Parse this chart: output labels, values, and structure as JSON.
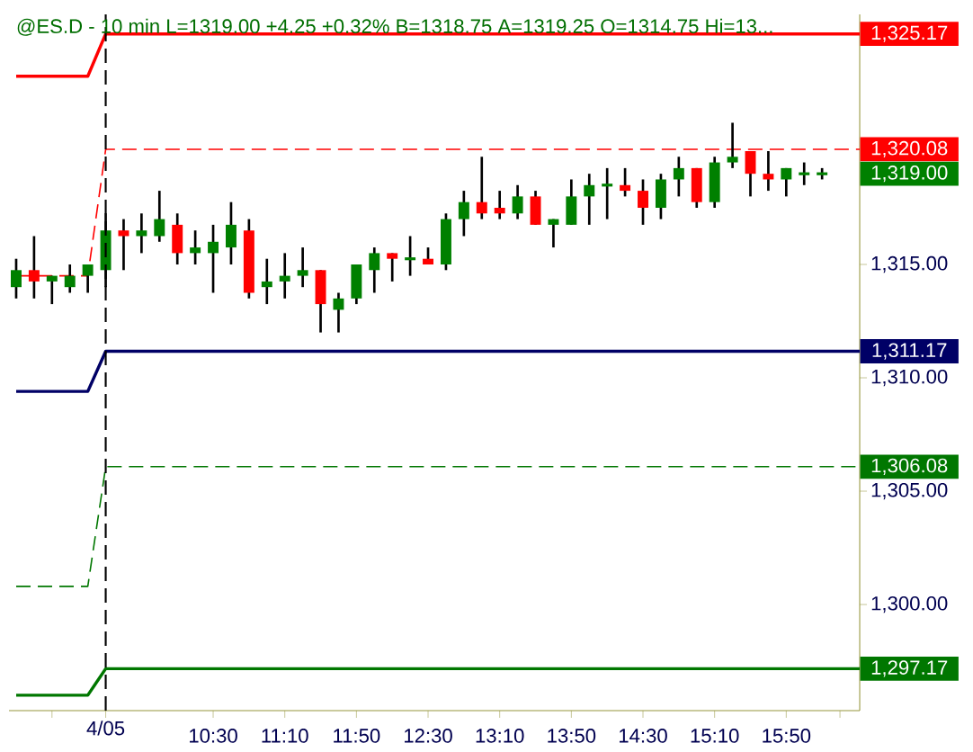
{
  "chart_data": {
    "type": "candlestick",
    "title": "@ES.D - 10 min  L=1319.00  +4.25  +0.32%  B=1318.75  A=1319.25  O=1314.75  Hi=13...",
    "xlim": [
      8.6,
      16.517
    ],
    "ylim": [
      1295.32,
      1326.03
    ],
    "xticks": [
      {
        "value": 9,
        "label": null
      },
      {
        "value": 9.5,
        "label": null
      },
      {
        "value": 10.5,
        "label": "10:30"
      },
      {
        "value": 11.1667,
        "label": "11:10"
      },
      {
        "value": 11.8333,
        "label": "11:50"
      },
      {
        "value": 12.5,
        "label": "12:30"
      },
      {
        "value": 13.1667,
        "label": "13:10"
      },
      {
        "value": 13.8333,
        "label": "13:50"
      },
      {
        "value": 14.5,
        "label": "14:30"
      },
      {
        "value": 15.1667,
        "label": "15:10"
      },
      {
        "value": 15.8333,
        "label": "15:50"
      },
      {
        "value": 16.3333,
        "label": null
      }
    ],
    "yticks": [
      {
        "value": 1300,
        "label": "1,300.00"
      },
      {
        "value": 1305,
        "label": "1,305.00"
      },
      {
        "value": 1310,
        "label": "1,310.00"
      },
      {
        "value": 1315,
        "label": "1,315.00"
      }
    ],
    "ref_lines": [
      {
        "axis": "x",
        "value": 9.5,
        "color": "#000000",
        "line_style": "dashed"
      }
    ],
    "annotations": [
      "4/05"
    ],
    "series": [
      {
        "type": "line",
        "color": "#ff0000",
        "line_style": "solid",
        "x": [
          8.6667,
          9.3333,
          9.5,
          16.517
        ],
        "values": [
          1323.3,
          1323.3,
          1325.17,
          1325.17
        ],
        "value_labels": [
          null,
          null,
          null,
          "1,325.17"
        ]
      },
      {
        "type": "line",
        "color": "#ff0000",
        "line_style": "dashed",
        "x": [
          8.6667,
          9.3333,
          9.5,
          16.517
        ],
        "values": [
          1314.5,
          1314.5,
          1320.08,
          1320.08
        ],
        "value_labels": [
          null,
          null,
          null,
          "1,320.08"
        ]
      },
      {
        "type": "line",
        "color": "#000066",
        "line_style": "solid",
        "x": [
          8.6667,
          9.3333,
          9.5,
          16.517
        ],
        "values": [
          1309.4,
          1309.4,
          1311.17,
          1311.17
        ],
        "value_labels": [
          null,
          null,
          null,
          "1,311.17"
        ]
      },
      {
        "type": "line",
        "color": "#007700",
        "line_style": "dashed",
        "x": [
          8.6667,
          9.3333,
          9.5,
          16.517
        ],
        "values": [
          1300.8,
          1300.8,
          1306.08,
          1306.08
        ],
        "value_labels": [
          null,
          null,
          null,
          "1,306.08"
        ]
      },
      {
        "type": "line",
        "color": "#007700",
        "line_style": "solid",
        "x": [
          8.6667,
          9.3333,
          9.5,
          16.517
        ],
        "values": [
          1296,
          1296,
          1297.17,
          1297.17
        ],
        "value_labels": [
          null,
          null,
          null,
          "1,297.17"
        ]
      },
      {
        "x": [
          8.6667,
          8.8333,
          9,
          9.1667,
          9.3333,
          9.5,
          9.6667,
          9.8333,
          10,
          10.1667,
          10.3333,
          10.5,
          10.6667,
          10.8333,
          11,
          11.1667,
          11.3333,
          11.5,
          11.6667,
          11.8333,
          12,
          12.1667,
          12.3333,
          12.5,
          12.6667,
          12.8333,
          13,
          13.1667,
          13.3333,
          13.5,
          13.6667,
          13.8333,
          14,
          14.1667,
          14.3333,
          14.5,
          14.6667,
          14.8333,
          15,
          15.1667,
          15.3333,
          15.5,
          15.6667,
          15.8333,
          16,
          16.1667
        ],
        "ohlc": [
          [
            1314,
            1315.25,
            1313.5,
            1314.75
          ],
          [
            1314.75,
            1316.25,
            1313.5,
            1314.25
          ],
          [
            1314.25,
            1314.5,
            1313.25,
            1314.5
          ],
          [
            1314,
            1315,
            1313.75,
            1314.5
          ],
          [
            1314.5,
            1315,
            1313.75,
            1315
          ],
          [
            1314.75,
            1317.25,
            1314,
            1316.5
          ],
          [
            1316.5,
            1317,
            1314.75,
            1316.25
          ],
          [
            1316.25,
            1317.25,
            1315.5,
            1316.5
          ],
          [
            1316.25,
            1318.25,
            1316,
            1317
          ],
          [
            1316.75,
            1317.25,
            1315,
            1315.5
          ],
          [
            1315.5,
            1316.5,
            1315,
            1315.75
          ],
          [
            1315.5,
            1316.75,
            1313.75,
            1316
          ],
          [
            1315.75,
            1317.75,
            1315,
            1316.75
          ],
          [
            1316.5,
            1317,
            1313.5,
            1313.75
          ],
          [
            1314,
            1315.25,
            1313.25,
            1314.25
          ],
          [
            1314.25,
            1315.5,
            1313.5,
            1314.5
          ],
          [
            1314.5,
            1315.75,
            1314,
            1314.75
          ],
          [
            1314.75,
            1314.75,
            1312,
            1313.25
          ],
          [
            1313,
            1313.75,
            1312,
            1313.5
          ],
          [
            1313.5,
            1315,
            1313.25,
            1315
          ],
          [
            1314.75,
            1315.75,
            1313.75,
            1315.5
          ],
          [
            1315.5,
            1315.5,
            1314.25,
            1315.25
          ],
          [
            1315.25,
            1316.25,
            1314.5,
            1315.25
          ],
          [
            1315.25,
            1315.75,
            1315,
            1315
          ],
          [
            1315,
            1317.25,
            1314.75,
            1317
          ],
          [
            1317,
            1318.25,
            1316.25,
            1317.75
          ],
          [
            1317.75,
            1319.75,
            1317,
            1317.25
          ],
          [
            1317.5,
            1318.25,
            1317,
            1317.25
          ],
          [
            1317.25,
            1318.5,
            1317,
            1318
          ],
          [
            1318,
            1318.25,
            1316.75,
            1316.75
          ],
          [
            1316.75,
            1317,
            1315.75,
            1317
          ],
          [
            1316.75,
            1318.75,
            1316.75,
            1318
          ],
          [
            1318,
            1319,
            1316.75,
            1318.5
          ],
          [
            1318.5,
            1319.25,
            1317,
            1318.5
          ],
          [
            1318.5,
            1319.25,
            1318,
            1318.25
          ],
          [
            1318.25,
            1318.75,
            1316.75,
            1317.5
          ],
          [
            1317.5,
            1319,
            1317,
            1318.75
          ],
          [
            1318.75,
            1319.75,
            1318,
            1319.25
          ],
          [
            1319.25,
            1319.25,
            1317.5,
            1317.75
          ],
          [
            1317.75,
            1319.75,
            1317.5,
            1319.5
          ],
          [
            1319.5,
            1321.25,
            1319.25,
            1319.75
          ],
          [
            1320,
            1320,
            1318,
            1319
          ],
          [
            1319,
            1320,
            1318.25,
            1318.75
          ],
          [
            1318.75,
            1319.25,
            1318,
            1319.25
          ],
          [
            1319,
            1319.5,
            1318.5,
            1319
          ],
          [
            1319,
            1319.25,
            1318.75,
            1319
          ]
        ],
        "value_labels": [
          null,
          null,
          null,
          null,
          null,
          null,
          null,
          null,
          null,
          null,
          null,
          null,
          null,
          null,
          null,
          null,
          null,
          null,
          null,
          null,
          null,
          null,
          null,
          null,
          null,
          null,
          null,
          null,
          null,
          null,
          null,
          null,
          null,
          null,
          null,
          null,
          null,
          null,
          null,
          null,
          null,
          null,
          null,
          null,
          null,
          "1,319.00"
        ],
        "colors": [
          "#008000",
          "#ff0000",
          "#008000",
          "#008000",
          "#008000",
          "#008000",
          "#ff0000",
          "#008000",
          "#008000",
          "#ff0000",
          "#008000",
          "#008000",
          "#008000",
          "#ff0000",
          "#008000",
          "#008000",
          "#008000",
          "#ff0000",
          "#008000",
          "#008000",
          "#008000",
          "#ff0000",
          "#008000",
          "#ff0000",
          "#008000",
          "#008000",
          "#ff0000",
          "#ff0000",
          "#008000",
          "#ff0000",
          "#008000",
          "#008000",
          "#008000",
          "#008000",
          "#ff0000",
          "#ff0000",
          "#008000",
          "#008000",
          "#ff0000",
          "#008000",
          "#008000",
          "#ff0000",
          "#ff0000",
          "#008000",
          "#008000",
          "#008000"
        ]
      }
    ]
  }
}
